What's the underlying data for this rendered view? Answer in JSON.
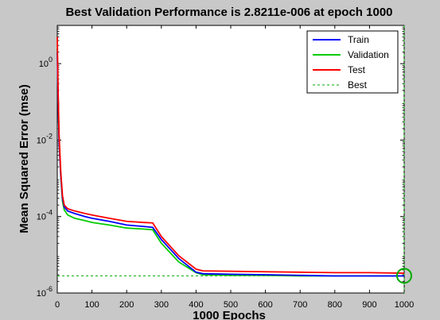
{
  "chart_data": {
    "type": "line",
    "title": "Best Validation Performance is 2.8211e-006 at epoch 1000",
    "xlabel": "1000 Epochs",
    "ylabel": "Mean Squared Error  (mse)",
    "xlim": [
      0,
      1000
    ],
    "ylim": [
      1e-06,
      10
    ],
    "yscale": "log",
    "grid": false,
    "legend_position": "top-right",
    "x_ticks": [
      "0",
      "100",
      "200",
      "300",
      "400",
      "500",
      "600",
      "700",
      "800",
      "900",
      "1000"
    ],
    "y_ticks": [
      {
        "value": 1e-06,
        "mantissa": "10",
        "exponent": "-6"
      },
      {
        "value": 0.0001,
        "mantissa": "10",
        "exponent": "-4"
      },
      {
        "value": 0.01,
        "mantissa": "10",
        "exponent": "-2"
      },
      {
        "value": 1,
        "mantissa": "10",
        "exponent": "0"
      }
    ],
    "series": [
      {
        "name": "Train",
        "color": "#0000ff",
        "style": "solid",
        "points": [
          [
            0,
            2
          ],
          [
            2,
            0.2
          ],
          [
            5,
            0.01
          ],
          [
            10,
            0.0012
          ],
          [
            15,
            0.0003
          ],
          [
            20,
            0.00018
          ],
          [
            30,
            0.00014
          ],
          [
            50,
            0.00012
          ],
          [
            80,
            0.0001
          ],
          [
            100,
            9e-05
          ],
          [
            150,
            7.5e-05
          ],
          [
            200,
            6e-05
          ],
          [
            250,
            5.5e-05
          ],
          [
            275,
            5.2e-05
          ],
          [
            300,
            2.5e-05
          ],
          [
            350,
            8e-06
          ],
          [
            400,
            3.5e-06
          ],
          [
            420,
            3.2e-06
          ],
          [
            500,
            3.1e-06
          ],
          [
            600,
            3e-06
          ],
          [
            700,
            2.9e-06
          ],
          [
            800,
            2.8e-06
          ],
          [
            900,
            2.8e-06
          ],
          [
            1000,
            2.8e-06
          ]
        ]
      },
      {
        "name": "Validation",
        "color": "#00cc00",
        "style": "solid",
        "points": [
          [
            0,
            2.5
          ],
          [
            2,
            0.25
          ],
          [
            5,
            0.012
          ],
          [
            10,
            0.0011
          ],
          [
            15,
            0.00025
          ],
          [
            20,
            0.00015
          ],
          [
            30,
            0.00011
          ],
          [
            50,
            9e-05
          ],
          [
            80,
            7.8e-05
          ],
          [
            100,
            7e-05
          ],
          [
            150,
            6e-05
          ],
          [
            200,
            5e-05
          ],
          [
            250,
            4.7e-05
          ],
          [
            275,
            4.5e-05
          ],
          [
            300,
            2e-05
          ],
          [
            350,
            6.5e-06
          ],
          [
            400,
            3.4e-06
          ],
          [
            420,
            3e-06
          ],
          [
            500,
            2.9e-06
          ],
          [
            600,
            2.9e-06
          ],
          [
            700,
            2.8e-06
          ],
          [
            800,
            2.8e-06
          ],
          [
            900,
            2.8e-06
          ],
          [
            1000,
            2.8e-06
          ]
        ]
      },
      {
        "name": "Test",
        "color": "#ff0000",
        "style": "solid",
        "points": [
          [
            0,
            5
          ],
          [
            2,
            0.3
          ],
          [
            5,
            0.015
          ],
          [
            10,
            0.0015
          ],
          [
            15,
            0.00035
          ],
          [
            20,
            0.0002
          ],
          [
            30,
            0.00016
          ],
          [
            50,
            0.00014
          ],
          [
            80,
            0.00012
          ],
          [
            100,
            0.00011
          ],
          [
            150,
            9e-05
          ],
          [
            200,
            7.5e-05
          ],
          [
            250,
            7e-05
          ],
          [
            275,
            6.8e-05
          ],
          [
            300,
            3e-05
          ],
          [
            350,
            9.5e-06
          ],
          [
            400,
            4.2e-06
          ],
          [
            420,
            3.8e-06
          ],
          [
            500,
            3.7e-06
          ],
          [
            600,
            3.6e-06
          ],
          [
            700,
            3.5e-06
          ],
          [
            800,
            3.4e-06
          ],
          [
            900,
            3.4e-06
          ],
          [
            1000,
            3.3e-06
          ]
        ]
      },
      {
        "name": "Best",
        "color": "#00aa00",
        "style": "dotted",
        "best_epoch": 1000,
        "best_value": 2.8211e-06
      }
    ]
  }
}
